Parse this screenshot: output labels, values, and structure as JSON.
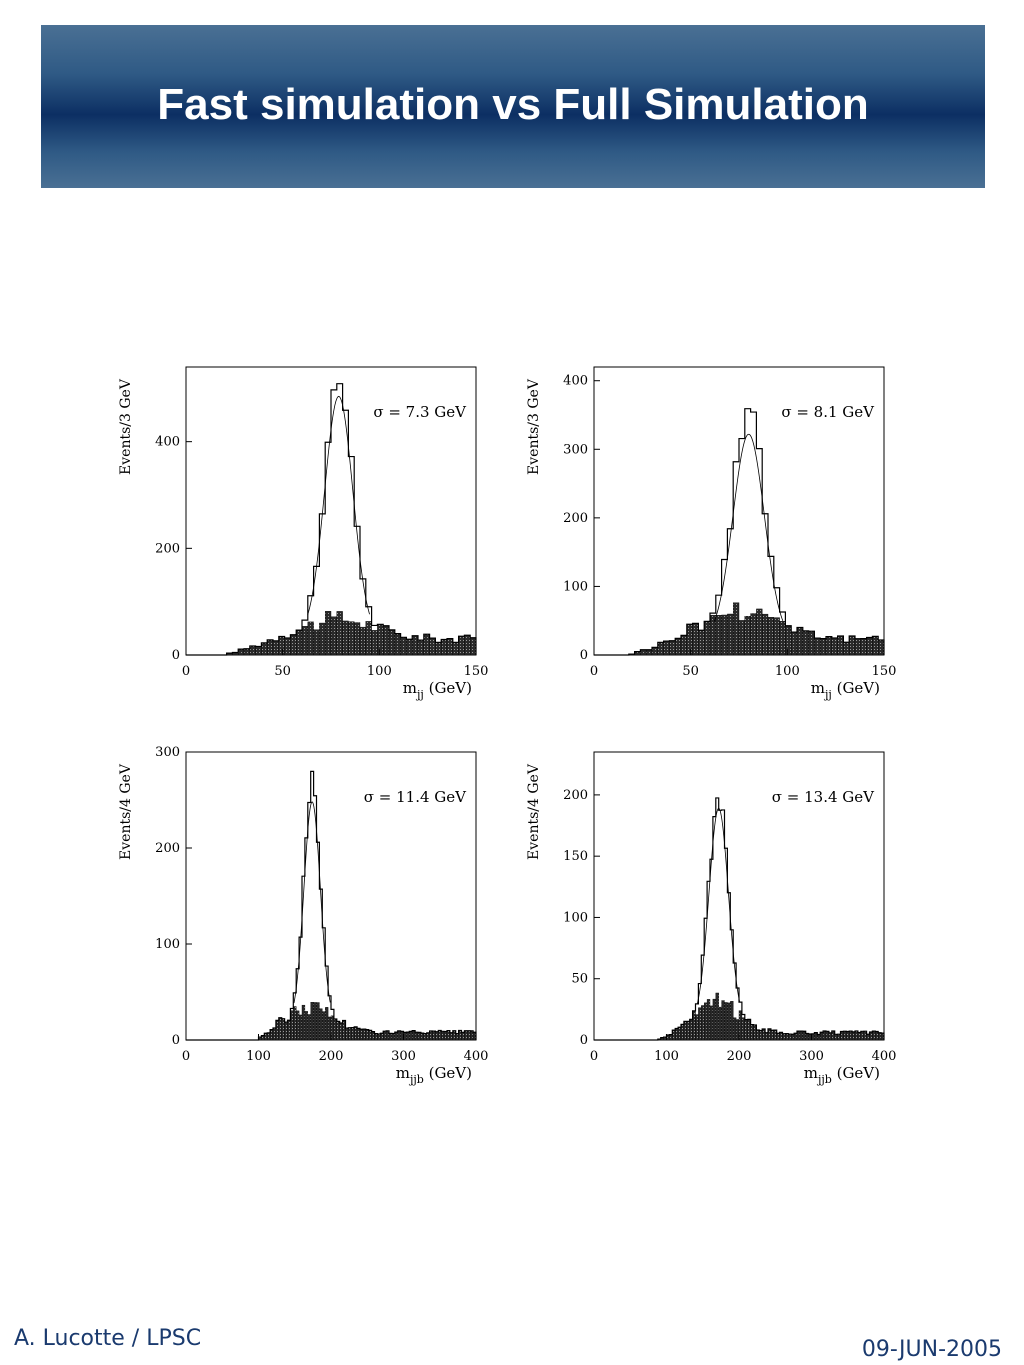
{
  "slide": {
    "title": "Fast simulation vs Full Simulation",
    "footer_left": "A. Lucotte / LPSC",
    "footer_right": "09-JUN-2005"
  },
  "colors": {
    "title_bar": "#0c2f63",
    "footer_text": "#1a3a6e",
    "background_fill": "#2a2a2a"
  },
  "chart_data": [
    {
      "type": "histogram",
      "ylabel": "Events/3 GeV",
      "xlabel_main": "m",
      "xlabel_sub": "jj",
      "xlabel_unit": "(GeV)",
      "annotation": "σ = 7.3 GeV",
      "xlim": [
        0,
        150
      ],
      "ylim": [
        0,
        540
      ],
      "xticks": [
        0,
        50,
        100,
        150
      ],
      "yticks": [
        0,
        200,
        400
      ],
      "bin_width": 3,
      "signal": {
        "peak": 79,
        "width": 7.3,
        "amplitude": 450
      },
      "signal_range": [
        20,
        150
      ],
      "signal_tail": 35,
      "background": {
        "start": 20,
        "level": 30,
        "peak_extra": 38,
        "peak_center": 80,
        "peak_width": 18,
        "tail_level": 18
      }
    },
    {
      "type": "histogram",
      "ylabel": "Events/3 GeV",
      "xlabel_main": "m",
      "xlabel_sub": "jj",
      "xlabel_unit": "(GeV)",
      "annotation": "σ = 8.1 GeV",
      "xlim": [
        0,
        150
      ],
      "ylim": [
        0,
        420
      ],
      "xticks": [
        0,
        50,
        100,
        150
      ],
      "yticks": [
        0,
        100,
        200,
        300,
        400
      ],
      "bin_width": 3,
      "signal": {
        "peak": 80,
        "width": 8.1,
        "amplitude": 300
      },
      "signal_range": [
        30,
        150
      ],
      "signal_tail": 22,
      "background": {
        "start": 18,
        "level": 22,
        "peak_extra": 45,
        "peak_center": 78,
        "peak_width": 20,
        "tail_level": 14
      }
    },
    {
      "type": "histogram",
      "ylabel": "Events/4 GeV",
      "xlabel_main": "m",
      "xlabel_sub": "jjb",
      "xlabel_unit": "(GeV)",
      "annotation": "σ = 11.4 GeV",
      "xlim": [
        0,
        400
      ],
      "ylim": [
        0,
        300
      ],
      "xticks": [
        0,
        100,
        200,
        300,
        400
      ],
      "yticks": [
        0,
        100,
        200,
        300
      ],
      "bin_width": 4,
      "signal": {
        "peak": 174,
        "width": 11.4,
        "amplitude": 230
      },
      "signal_range": [
        100,
        400
      ],
      "signal_tail": 18,
      "background": {
        "start": 100,
        "level": 8,
        "peak_extra": 27,
        "peak_center": 172,
        "peak_width": 32,
        "tail_level": 5
      }
    },
    {
      "type": "histogram",
      "ylabel": "Events/4 GeV",
      "xlabel_main": "m",
      "xlabel_sub": "jjb",
      "xlabel_unit": "(GeV)",
      "annotation": "σ = 13.4 GeV",
      "xlim": [
        0,
        400
      ],
      "ylim": [
        0,
        235
      ],
      "xticks": [
        0,
        100,
        200,
        300,
        400
      ],
      "yticks": [
        0,
        50,
        100,
        150,
        200
      ],
      "bin_width": 4,
      "signal": {
        "peak": 172,
        "width": 13.4,
        "amplitude": 175
      },
      "signal_range": [
        100,
        400
      ],
      "signal_tail": 14,
      "background": {
        "start": 90,
        "level": 6,
        "peak_extra": 25,
        "peak_center": 170,
        "peak_width": 30,
        "tail_level": 4
      }
    }
  ]
}
